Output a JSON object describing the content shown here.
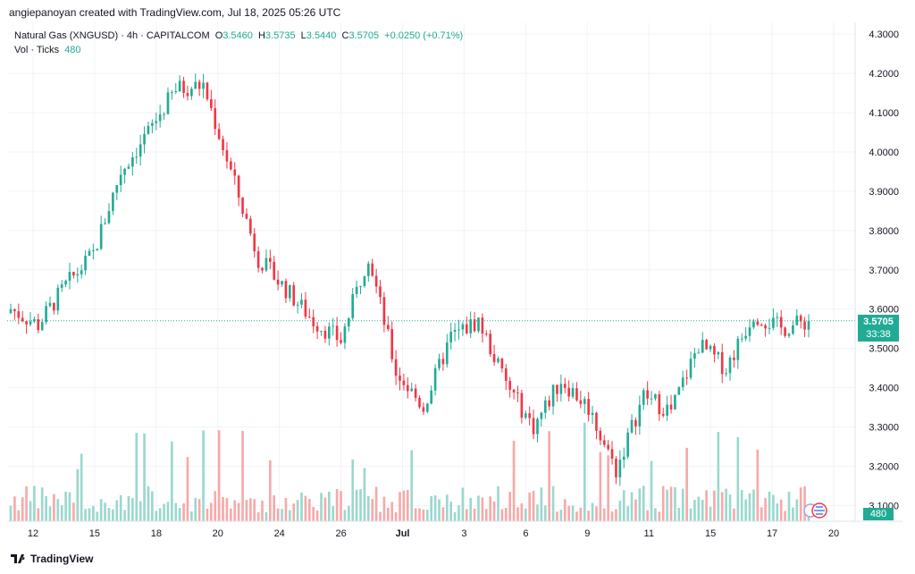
{
  "header": "angiepanoyan created with TradingView.com, Jul 18, 2025 05:26 UTC",
  "legend": {
    "symbol": "Natural Gas (XNGUSD) · 4h · CAPITALCOM",
    "open_key": "O",
    "open": "3.5460",
    "high_key": "H",
    "high": "3.5735",
    "low_key": "L",
    "low": "3.5440",
    "close_key": "C",
    "close": "3.5705",
    "change": "+0.0250 (+0.71%)",
    "vol_label": "Vol · Ticks",
    "vol_value": "480"
  },
  "price_badge": {
    "price": "3.5705",
    "countdown": "33:38"
  },
  "vol_badge": "480",
  "footer": "TradingView",
  "colors": {
    "up": "#22ab94",
    "down": "#f23645",
    "up_vol": "#9ad8ce",
    "down_vol": "#f7a9a9",
    "grid": "#f0f3fa"
  },
  "chart_data": {
    "type": "candlestick",
    "timeframe": "4h",
    "y_ticks": [
      "4.3000",
      "4.2000",
      "4.1000",
      "4.0000",
      "3.9000",
      "3.8000",
      "3.7000",
      "3.6000",
      "3.5000",
      "3.4000",
      "3.3000",
      "3.2000",
      "3.1000"
    ],
    "x_ticks": [
      "12",
      "15",
      "18",
      "20",
      "24",
      "26",
      "Jul",
      "3",
      "6",
      "9",
      "11",
      "15",
      "17",
      "20"
    ],
    "current_price": 3.5705,
    "ylim": [
      3.06,
      4.33
    ],
    "close_path": [
      [
        "12",
        3.6
      ],
      [
        "12",
        3.56
      ],
      [
        "15",
        3.66
      ],
      [
        "15",
        3.74
      ],
      [
        "18",
        3.95
      ],
      [
        "18",
        4.05
      ],
      [
        "20",
        4.16
      ],
      [
        "20",
        4.17
      ],
      [
        "20",
        3.95
      ],
      [
        "24",
        3.73
      ],
      [
        "24",
        3.65
      ],
      [
        "26",
        3.57
      ],
      [
        "26",
        3.52
      ],
      [
        "Jul",
        3.74
      ],
      [
        "Jul",
        3.44
      ],
      [
        "Jul",
        3.35
      ],
      [
        "3",
        3.53
      ],
      [
        "3",
        3.57
      ],
      [
        "3",
        3.41
      ],
      [
        "6",
        3.3
      ],
      [
        "6",
        3.42
      ],
      [
        "9",
        3.35
      ],
      [
        "9",
        3.19
      ],
      [
        "11",
        3.38
      ],
      [
        "11",
        3.34
      ],
      [
        "15",
        3.51
      ],
      [
        "15",
        3.45
      ],
      [
        "17",
        3.59
      ],
      [
        "17",
        3.55
      ],
      [
        "17",
        3.5705
      ]
    ]
  }
}
